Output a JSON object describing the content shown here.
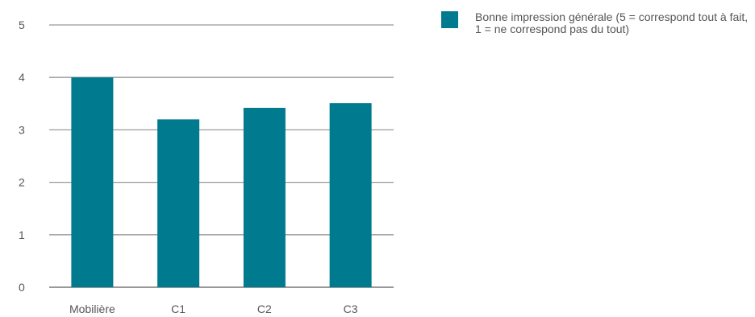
{
  "chart_data": {
    "type": "bar",
    "categories": [
      "Mobilière",
      "C1",
      "C2",
      "C3"
    ],
    "series": [
      {
        "name": "Bonne impression générale (5 = correspond tout à fait, 1 = ne correspond pas du tout)",
        "values": [
          4.0,
          3.2,
          3.42,
          3.51
        ]
      }
    ],
    "title": "",
    "xlabel": "",
    "ylabel": "",
    "ylim": [
      0,
      5
    ],
    "yticks": [
      "0",
      "1",
      "2",
      "3",
      "4",
      "5"
    ],
    "grid": true,
    "legend_position": "top-right"
  },
  "colors": {
    "bar": "#007a8e",
    "grid": "#999999",
    "axis_text": "#555555"
  }
}
